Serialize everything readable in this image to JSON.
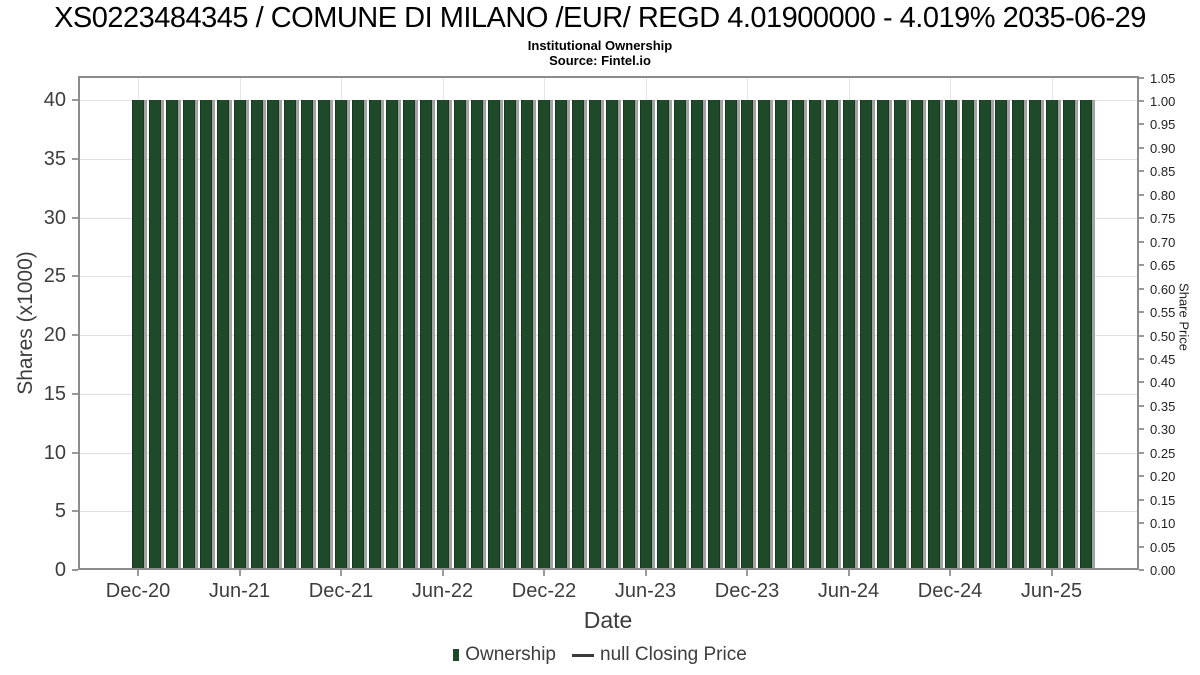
{
  "page": {
    "title": "XS0223484345 / COMUNE DI MILANO /EUR/ REGD 4.01900000 - 4.019% 2035-06-29",
    "subtitle": "Institutional Ownership",
    "source": "Source: Fintel.io"
  },
  "axes": {
    "x": {
      "label": "Date",
      "ticks": [
        "Dec-20",
        "Jun-21",
        "Dec-21",
        "Jun-22",
        "Dec-22",
        "Jun-23",
        "Dec-23",
        "Jun-24",
        "Dec-24",
        "Jun-25"
      ]
    },
    "y_left": {
      "label": "Shares (x1000)",
      "ticks": [
        "0",
        "5",
        "10",
        "15",
        "20",
        "25",
        "30",
        "35",
        "40"
      ]
    },
    "y_right": {
      "label": "Share Price",
      "ticks": [
        "0.00",
        "0.05",
        "0.10",
        "0.15",
        "0.20",
        "0.25",
        "0.30",
        "0.35",
        "0.40",
        "0.45",
        "0.50",
        "0.55",
        "0.60",
        "0.65",
        "0.70",
        "0.75",
        "0.80",
        "0.85",
        "0.90",
        "0.95",
        "1.00",
        "1.05"
      ]
    }
  },
  "legend": {
    "items": [
      {
        "label": "Ownership",
        "marker": "bar",
        "color": "#1F4A2A"
      },
      {
        "label": "null Closing Price",
        "marker": "line",
        "color": "#3A3A3A"
      }
    ]
  },
  "colors": {
    "bar_fill": "#1F4A2A",
    "bar_edge": "#17391F",
    "bar_shadow": "#A3A3A3",
    "grid": "#E2E2E2",
    "spine": "#8C8C8C",
    "tick": "#999999"
  },
  "chart_data": {
    "type": "bar",
    "title": "XS0223484345 / COMUNE DI MILANO /EUR/ REGD 4.01900000 - 4.019% 2035-06-29",
    "subtitle": "Institutional Ownership",
    "source": "Source: Fintel.io",
    "xlabel": "Date",
    "ylabel": "Shares (x1000)",
    "ylabel_right": "Share Price",
    "ylim_left": [
      0,
      42
    ],
    "ylim_right": [
      0,
      1.055
    ],
    "grid": true,
    "legend_position": "bottom",
    "x_tick_labels": [
      "Dec-20",
      "Jun-21",
      "Dec-21",
      "Jun-22",
      "Dec-22",
      "Jun-23",
      "Dec-23",
      "Jun-24",
      "Dec-24",
      "Jun-25"
    ],
    "x": [
      "Dec-2020",
      "Jan-2021",
      "Feb-2021",
      "Mar-2021",
      "Apr-2021",
      "May-2021",
      "Jun-2021",
      "Jul-2021",
      "Aug-2021",
      "Sep-2021",
      "Oct-2021",
      "Nov-2021",
      "Dec-2021",
      "Jan-2022",
      "Feb-2022",
      "Mar-2022",
      "Apr-2022",
      "May-2022",
      "Jun-2022",
      "Jul-2022",
      "Aug-2022",
      "Sep-2022",
      "Oct-2022",
      "Nov-2022",
      "Dec-2022",
      "Jan-2023",
      "Feb-2023",
      "Mar-2023",
      "Apr-2023",
      "May-2023",
      "Jun-2023",
      "Jul-2023",
      "Aug-2023",
      "Sep-2023",
      "Oct-2023",
      "Nov-2023",
      "Dec-2023",
      "Jan-2024",
      "Feb-2024",
      "Mar-2024",
      "Apr-2024",
      "May-2024",
      "Jun-2024",
      "Jul-2024",
      "Aug-2024",
      "Sep-2024",
      "Oct-2024",
      "Nov-2024",
      "Dec-2024",
      "Jan-2025",
      "Feb-2025",
      "Mar-2025",
      "Apr-2025",
      "May-2025",
      "Jun-2025",
      "Jul-2025",
      "Aug-2025"
    ],
    "series": [
      {
        "name": "Ownership",
        "axis": "left",
        "units": "shares (x1000)",
        "values": [
          40,
          40,
          40,
          40,
          40,
          40,
          40,
          40,
          40,
          40,
          40,
          40,
          40,
          40,
          40,
          40,
          40,
          40,
          40,
          40,
          40,
          40,
          40,
          40,
          40,
          40,
          40,
          40,
          40,
          40,
          40,
          40,
          40,
          40,
          40,
          40,
          40,
          40,
          40,
          40,
          40,
          40,
          40,
          40,
          40,
          40,
          40,
          40,
          40,
          40,
          40,
          40,
          40,
          40,
          40,
          40,
          40
        ]
      },
      {
        "name": "null Closing Price",
        "axis": "right",
        "values": []
      }
    ]
  }
}
